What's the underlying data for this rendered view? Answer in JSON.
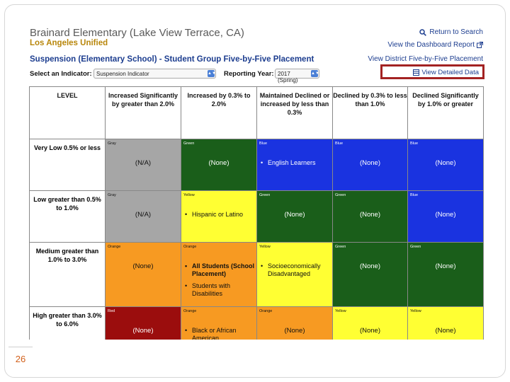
{
  "header": {
    "school_name": "Brainard Elementary (Lake View Terrace, CA)",
    "district": "Los Angeles Unified",
    "return_link": "Return to Search",
    "dashboard_link": "View the Dashboard Report",
    "placement_title": "Suspension (Elementary School) - Student Group Five-by-Five Placement",
    "district_link": "View District Five-by-Five Placement",
    "detail_link": "View Detailed Data"
  },
  "controls": {
    "indicator_label": "Select an Indicator:",
    "indicator_value": "Suspension Indicator",
    "year_label": "Reporting Year:",
    "year_value": "2017 (Spring)"
  },
  "grid": {
    "headers": [
      "LEVEL",
      "Increased Significantly by greater than 2.0%",
      "Increased by 0.3% to 2.0%",
      "Maintained Declined or increased by less than 0.3%",
      "Declined by 0.3% to less than 1.0%",
      "Declined Significantly by 1.0% or greater"
    ],
    "rows": [
      {
        "level": "Very Low 0.5% or less",
        "cells": [
          {
            "color": "Gray",
            "text": "(N/A)"
          },
          {
            "color": "Green",
            "text": "(None)"
          },
          {
            "color": "Blue",
            "items": [
              "English Learners"
            ]
          },
          {
            "color": "Blue",
            "text": "(None)"
          },
          {
            "color": "Blue",
            "text": "(None)"
          }
        ]
      },
      {
        "level": "Low greater than 0.5% to 1.0%",
        "cells": [
          {
            "color": "Gray",
            "text": "(N/A)"
          },
          {
            "color": "Yellow",
            "items": [
              "Hispanic or Latino"
            ]
          },
          {
            "color": "Green",
            "text": "(None)"
          },
          {
            "color": "Green",
            "text": "(None)"
          },
          {
            "color": "Blue",
            "text": "(None)"
          }
        ]
      },
      {
        "level": "Medium greater than 1.0% to 3.0%",
        "cells": [
          {
            "color": "Orange",
            "text": "(None)"
          },
          {
            "color": "Orange",
            "items": [
              "All Students (School Placement)",
              "Students with Disabilities"
            ]
          },
          {
            "color": "Yellow",
            "items": [
              "Socioeconomically Disadvantaged"
            ]
          },
          {
            "color": "Green",
            "text": "(None)"
          },
          {
            "color": "Green",
            "text": "(None)"
          }
        ]
      },
      {
        "level": "High greater than 3.0% to 6.0%",
        "cells": [
          {
            "color": "Red",
            "text": "(None)"
          },
          {
            "color": "Orange",
            "items": [
              "Black or African American"
            ]
          },
          {
            "color": "Orange",
            "text": "(None)"
          },
          {
            "color": "Yellow",
            "text": "(None)"
          },
          {
            "color": "Yellow",
            "text": "(None)"
          }
        ]
      }
    ]
  },
  "slide_number": "26",
  "colors": {
    "Gray": "#a6a6a6",
    "Green": "#1a5e1a",
    "Blue": "#1a33e0",
    "Yellow": "#ffff33",
    "Orange": "#f79a22",
    "Red": "#9b0d0d",
    "link": "#1c3d8f",
    "highlight_box": "#a32222"
  }
}
